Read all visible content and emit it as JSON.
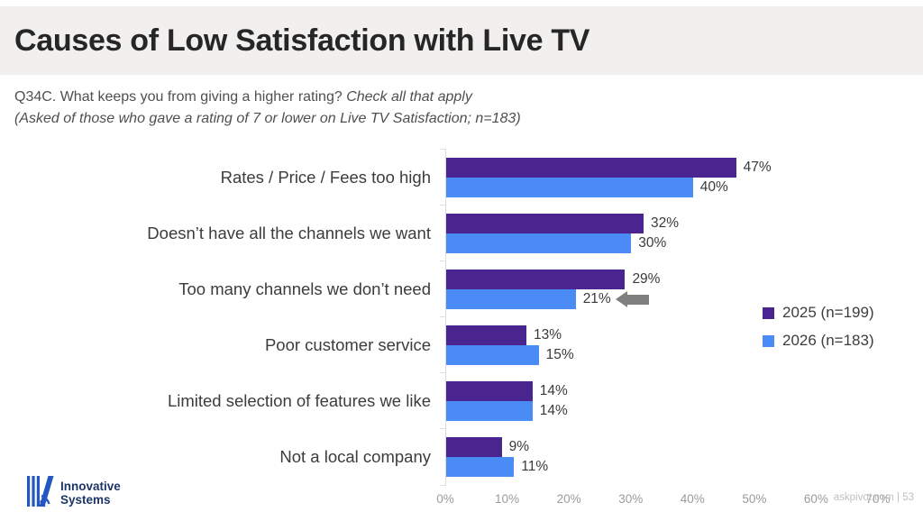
{
  "slide": {
    "title": "Causes of Low Satisfaction with Live TV",
    "question": {
      "line1_normal": "Q34C. What keeps you from giving a higher rating? ",
      "line1_italic": "Check all that apply",
      "line2_italic": "(Asked of those who gave a rating of 7 or lower on Live TV Satisfaction; n=183)"
    },
    "footer": {
      "logo_line1": "Innovative",
      "logo_line2": "Systems",
      "watermark": "askpivot.com | 53"
    }
  },
  "chart_data": {
    "type": "bar",
    "orientation": "horizontal",
    "title": "Causes of Low Satisfaction with Live TV",
    "categories": [
      "Rates / Price / Fees too high",
      "Doesn’t have all the channels we want",
      "Too many channels we don’t need",
      "Poor customer service",
      "Limited selection of features we like",
      "Not a local company"
    ],
    "series": [
      {
        "name": "2025 (n=199)",
        "color": "#4a2590",
        "values": [
          47,
          32,
          29,
          13,
          14,
          9
        ]
      },
      {
        "name": "2026 (n=183)",
        "color": "#4a8bf5",
        "values": [
          40,
          30,
          21,
          15,
          14,
          11
        ]
      }
    ],
    "value_suffix": "%",
    "xlim": [
      0,
      70
    ],
    "x_ticks": [
      "0%",
      "10%",
      "20%",
      "30%",
      "40%",
      "50%",
      "60%",
      "70%"
    ],
    "grid": false,
    "legend_position": "right",
    "annotation": {
      "type": "left-arrow",
      "category_index": 2,
      "series_index": 1,
      "color": "#7f7f7f"
    },
    "colors": {
      "axis_line": "#dcdcdc",
      "tick_text": "#9b9b9b",
      "value_text": "#3a3a3a"
    }
  }
}
